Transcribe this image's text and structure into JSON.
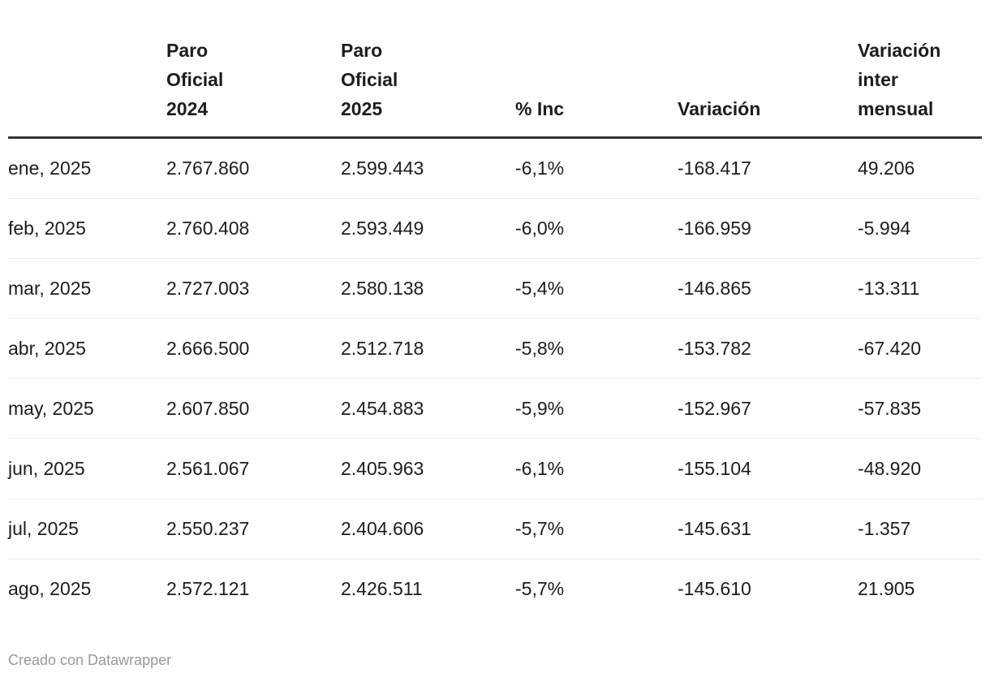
{
  "chart_data": {
    "type": "table",
    "columns": [
      "",
      "Paro\nOficial\n2024",
      "Paro\nOficial\n2025",
      "% Inc",
      "Variación",
      "Variación\ninter\nmensual"
    ],
    "rows": [
      [
        "ene, 2025",
        "2.767.860",
        "2.599.443",
        "-6,1%",
        "-168.417",
        "49.206"
      ],
      [
        "feb, 2025",
        "2.760.408",
        "2.593.449",
        "-6,0%",
        "-166.959",
        "-5.994"
      ],
      [
        "mar, 2025",
        "2.727.003",
        "2.580.138",
        "-5,4%",
        "-146.865",
        "-13.311"
      ],
      [
        "abr, 2025",
        "2.666.500",
        "2.512.718",
        "-5,8%",
        "-153.782",
        "-67.420"
      ],
      [
        "may, 2025",
        "2.607.850",
        "2.454.883",
        "-5,9%",
        "-152.967",
        "-57.835"
      ],
      [
        "jun, 2025",
        "2.561.067",
        "2.405.963",
        "-6,1%",
        "-155.104",
        "-48.920"
      ],
      [
        "jul, 2025",
        "2.550.237",
        "2.404.606",
        "-5,7%",
        "-145.631",
        "-1.357"
      ],
      [
        "ago, 2025",
        "2.572.121",
        "2.426.511",
        "-5,7%",
        "-145.610",
        "21.905"
      ]
    ]
  },
  "footer": {
    "attribution": "Creado con Datawrapper"
  },
  "colors": {
    "text": "#1d1d1d",
    "header_rule": "#333333",
    "row_rule": "#eeeeee",
    "attribution": "#999999",
    "background": "#ffffff"
  }
}
